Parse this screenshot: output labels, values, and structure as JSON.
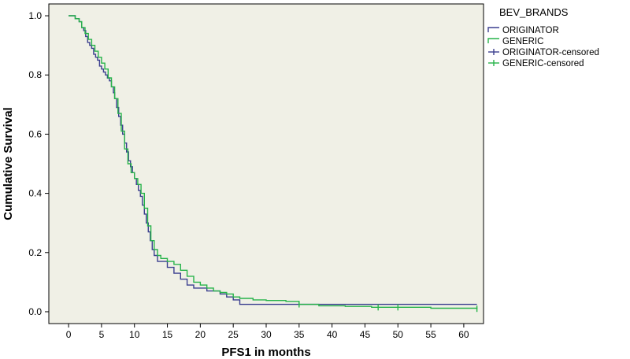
{
  "chart_data": {
    "type": "line",
    "subtype": "kaplan-meier",
    "title": "",
    "xlabel": "PFS1 in months",
    "ylabel": "Cumulative Survival",
    "xlim": [
      -3,
      63
    ],
    "ylim": [
      -0.04,
      1.04
    ],
    "xticks": [
      0,
      5,
      10,
      15,
      20,
      25,
      30,
      35,
      40,
      45,
      50,
      55,
      60
    ],
    "yticks": [
      0.0,
      0.2,
      0.4,
      0.6,
      0.8,
      1.0
    ],
    "ytick_labels": [
      "0.0",
      "0.2",
      "0.4",
      "0.6",
      "0.8",
      "1.0"
    ],
    "grid": false,
    "plot_background": "#f0f0e6",
    "legend": {
      "title": "BEV_BRANDS",
      "placement": "right",
      "entries": [
        "ORIGINATOR",
        "GENERIC",
        "ORIGINATOR-censored",
        "GENERIC-censored"
      ]
    },
    "series": [
      {
        "name": "ORIGINATOR",
        "color": "#3b3f8f",
        "x": [
          0,
          1,
          1.6,
          2,
          2.3,
          2.6,
          2.9,
          3.2,
          3.5,
          3.8,
          4.1,
          4.4,
          4.7,
          5,
          5.3,
          5.6,
          5.9,
          6.2,
          6.5,
          6.8,
          7.0,
          7.3,
          7.6,
          7.9,
          8.2,
          8.5,
          8.8,
          9.1,
          9.4,
          9.7,
          10.0,
          10.3,
          10.6,
          10.9,
          11.2,
          11.5,
          11.8,
          12.1,
          12.4,
          12.7,
          13.0,
          13.5,
          14,
          15,
          16,
          17,
          18,
          19,
          20,
          21,
          22,
          23,
          24,
          25,
          26,
          62
        ],
        "y": [
          1.0,
          0.99,
          0.98,
          0.96,
          0.95,
          0.93,
          0.91,
          0.9,
          0.89,
          0.87,
          0.86,
          0.85,
          0.83,
          0.82,
          0.81,
          0.8,
          0.79,
          0.78,
          0.76,
          0.74,
          0.72,
          0.69,
          0.66,
          0.63,
          0.6,
          0.57,
          0.54,
          0.51,
          0.49,
          0.47,
          0.45,
          0.43,
          0.41,
          0.39,
          0.36,
          0.33,
          0.3,
          0.27,
          0.24,
          0.21,
          0.19,
          0.17,
          0.17,
          0.15,
          0.13,
          0.11,
          0.09,
          0.08,
          0.08,
          0.07,
          0.07,
          0.06,
          0.05,
          0.04,
          0.025,
          0.025
        ],
        "censored_x": [],
        "censored_y": []
      },
      {
        "name": "GENERIC",
        "color": "#27b34a",
        "x": [
          0,
          1,
          1.6,
          2,
          2.5,
          3,
          3.5,
          4,
          4.5,
          5,
          5.5,
          6,
          6.5,
          7,
          7.5,
          8,
          8.5,
          9,
          9.5,
          10,
          10.5,
          11,
          11.5,
          12,
          12.5,
          13,
          13.5,
          14,
          15,
          16,
          17,
          18,
          19,
          20,
          21,
          22,
          23,
          24,
          25,
          26,
          28,
          30,
          33,
          35,
          38,
          42,
          46,
          50,
          55,
          62
        ],
        "y": [
          1.0,
          0.99,
          0.98,
          0.96,
          0.94,
          0.92,
          0.9,
          0.88,
          0.86,
          0.84,
          0.82,
          0.79,
          0.76,
          0.72,
          0.67,
          0.61,
          0.55,
          0.5,
          0.47,
          0.45,
          0.43,
          0.4,
          0.35,
          0.29,
          0.24,
          0.21,
          0.19,
          0.18,
          0.17,
          0.16,
          0.14,
          0.12,
          0.1,
          0.09,
          0.08,
          0.07,
          0.065,
          0.06,
          0.05,
          0.045,
          0.04,
          0.038,
          0.035,
          0.025,
          0.02,
          0.018,
          0.015,
          0.015,
          0.012,
          0.01
        ],
        "censored_x": [
          35,
          47,
          50,
          62
        ],
        "censored_y": [
          0.025,
          0.015,
          0.015,
          0.01
        ]
      }
    ]
  }
}
